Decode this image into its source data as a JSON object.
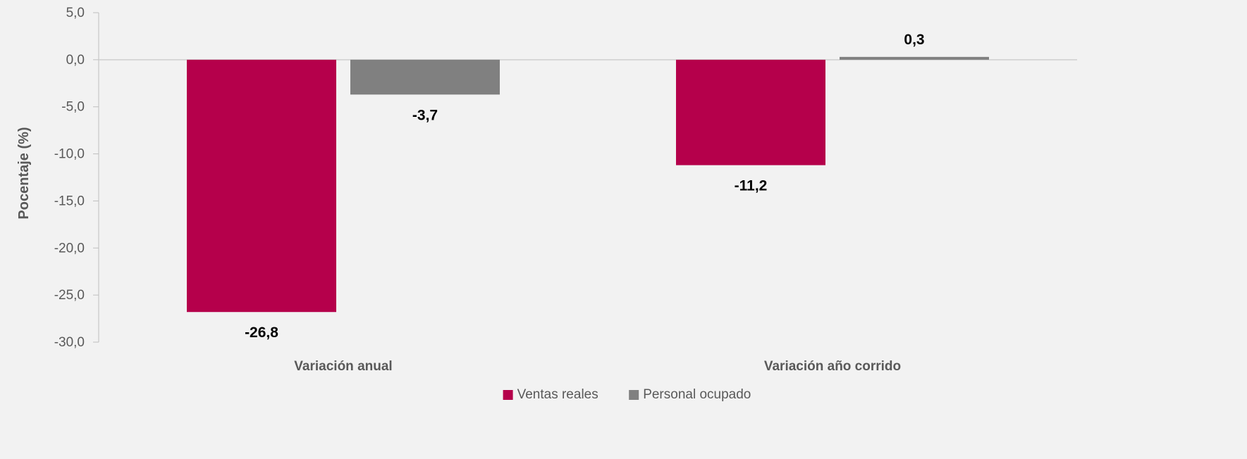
{
  "chart_data": {
    "type": "bar",
    "title": "",
    "xlabel": "",
    "ylabel": "Pocentaje (%)",
    "categories": [
      "Variación anual",
      "Variación año corrido"
    ],
    "series": [
      {
        "name": "Ventas reales",
        "values": [
          -26.8,
          -11.2
        ],
        "labels": [
          "-26,8",
          "-11,2"
        ],
        "color": "#b5004b"
      },
      {
        "name": "Personal ocupado",
        "values": [
          -3.7,
          0.3
        ],
        "labels": [
          "-3,7",
          "0,3"
        ],
        "color": "#808080"
      }
    ],
    "ylim": [
      -30,
      5
    ],
    "yticks": [
      5,
      0,
      -5,
      -10,
      -15,
      -20,
      -25,
      -30
    ],
    "ytick_labels": [
      "5,0",
      "0,0",
      "-5,0",
      "-10,0",
      "-15,0",
      "-20,0",
      "-25,0",
      "-30,0"
    ],
    "grid": false,
    "legend_position": "bottom"
  }
}
